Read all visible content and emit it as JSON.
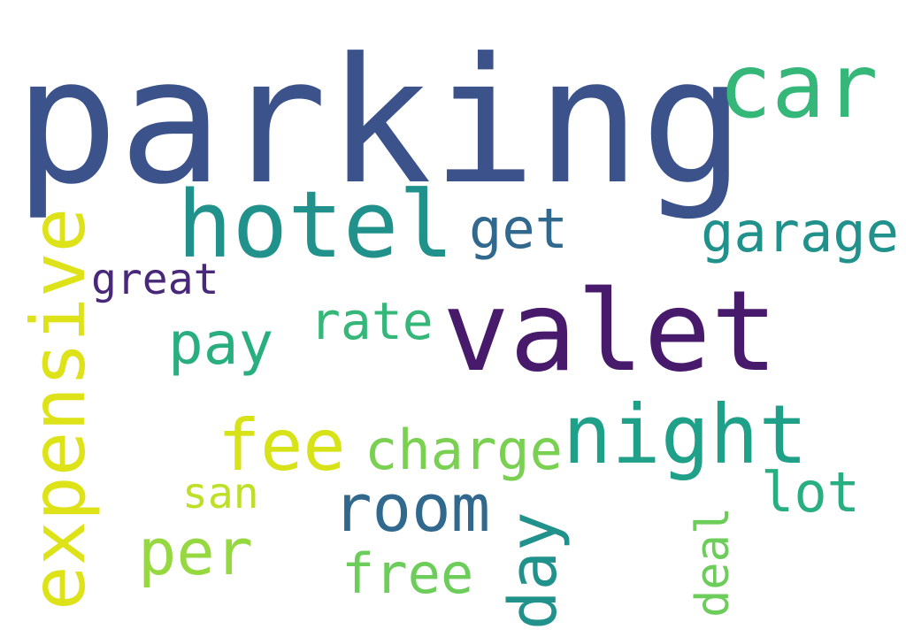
{
  "words": [
    {
      "text": "parking",
      "color": "#3b528b"
    },
    {
      "text": "car",
      "color": "#35b779"
    },
    {
      "text": "hotel",
      "color": "#21918c"
    },
    {
      "text": "get",
      "color": "#31688e"
    },
    {
      "text": "garage",
      "color": "#21918c"
    },
    {
      "text": "great",
      "color": "#482878"
    },
    {
      "text": "valet",
      "color": "#481a6c"
    },
    {
      "text": "rate",
      "color": "#35b779"
    },
    {
      "text": "pay",
      "color": "#29af7f"
    },
    {
      "text": "expensive",
      "color": "#dde318"
    },
    {
      "text": "night",
      "color": "#1fa088"
    },
    {
      "text": "fee",
      "color": "#d8e219"
    },
    {
      "text": "charge",
      "color": "#7ad151"
    },
    {
      "text": "room",
      "color": "#31688e"
    },
    {
      "text": "lot",
      "color": "#28ae80"
    },
    {
      "text": "san",
      "color": "#bddf26"
    },
    {
      "text": "per",
      "color": "#95d840"
    },
    {
      "text": "day",
      "color": "#21918c"
    },
    {
      "text": "deal",
      "color": "#6ccd5a"
    },
    {
      "text": "free",
      "color": "#6ccd5a"
    }
  ]
}
